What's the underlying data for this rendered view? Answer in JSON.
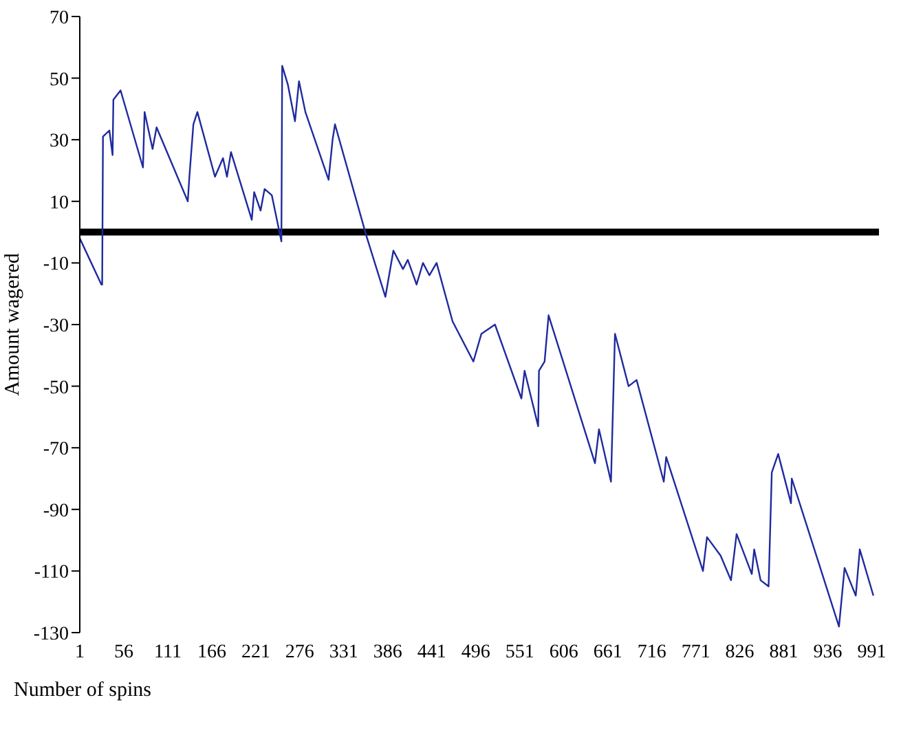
{
  "chart_data": {
    "type": "line",
    "xlabel": "Number of spins",
    "ylabel": "Amount wagered",
    "xlim": [
      1,
      1000
    ],
    "xticks": [
      1,
      56,
      111,
      166,
      221,
      276,
      331,
      386,
      441,
      496,
      551,
      606,
      661,
      716,
      771,
      826,
      881,
      936,
      991
    ],
    "ylim": [
      -130,
      70
    ],
    "yticks": [
      -130,
      -110,
      -90,
      -70,
      -50,
      -30,
      -10,
      10,
      30,
      50,
      70
    ],
    "grid": false,
    "legend": false,
    "marker": "none",
    "line_style": "solid",
    "ref_lines": [
      {
        "axis": "y",
        "value": 0,
        "color": "#000000"
      }
    ],
    "series": [
      {
        "color": "#1f2a9e",
        "x": [
          1,
          28,
          29,
          30,
          38,
          42,
          43,
          52,
          80,
          82,
          92,
          97,
          136,
          138,
          143,
          148,
          170,
          180,
          185,
          190,
          216,
          219,
          227,
          232,
          241,
          253,
          254,
          261,
          270,
          275,
          283,
          312,
          317,
          320,
          359,
          383,
          393,
          405,
          411,
          422,
          430,
          438,
          447,
          467,
          493,
          503,
          520,
          553,
          557,
          574,
          575,
          582,
          587,
          645,
          650,
          665,
          670,
          687,
          697,
          731,
          734,
          780,
          785,
          802,
          815,
          822,
          841,
          844,
          852,
          862,
          866,
          874,
          890,
          891,
          950,
          957,
          971,
          976,
          993
        ],
        "values": [
          -2,
          -17,
          -17,
          31,
          33,
          25,
          43,
          46,
          21,
          39,
          27,
          34,
          10,
          18,
          35,
          39,
          18,
          24,
          18,
          26,
          4,
          13,
          7,
          14,
          12,
          -3,
          54,
          48,
          36,
          49,
          39,
          17,
          30,
          35,
          -1,
          -21,
          -6,
          -12,
          -9,
          -17,
          -10,
          -14,
          -10,
          -29,
          -42,
          -33,
          -30,
          -54,
          -45,
          -63,
          -45,
          -42,
          -27,
          -75,
          -64,
          -81,
          -33,
          -50,
          -48,
          -81,
          -73,
          -110,
          -99,
          -105,
          -113,
          -98,
          -111,
          -103,
          -113,
          -115,
          -78,
          -72,
          -88,
          -80,
          -128,
          -109,
          -118,
          -103,
          -118
        ]
      }
    ]
  }
}
